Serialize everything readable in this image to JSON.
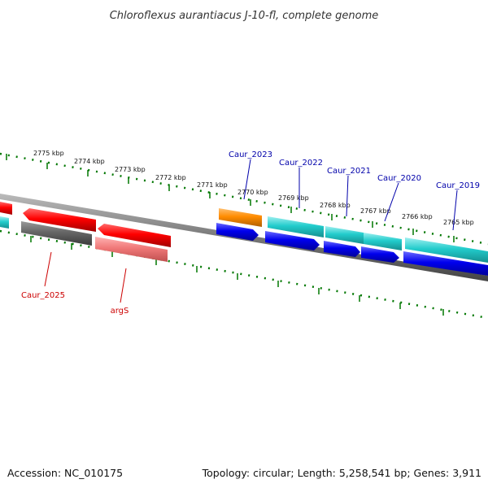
{
  "title": "Chloroflexus aurantiacus J-10-fl, complete genome",
  "footer": {
    "accession": "Accession: NC_010175",
    "summary": "Topology: circular; Length: 5,258,541 bp; Genes: 3,911"
  },
  "ruler": {
    "labels": [
      "2775 kbp",
      "2774 kbp",
      "2773 kbp",
      "2772 kbp",
      "2771 kbp",
      "2770 kbp",
      "2769 kbp",
      "2768 kbp",
      "2767 kbp",
      "2766 kbp",
      "2765 kbp"
    ]
  },
  "gene_labels": [
    {
      "name": "Caur_2023",
      "strand": "forward"
    },
    {
      "name": "Caur_2022",
      "strand": "forward"
    },
    {
      "name": "Caur_2021",
      "strand": "forward"
    },
    {
      "name": "Caur_2020",
      "strand": "forward"
    },
    {
      "name": "Caur_2019",
      "strand": "forward"
    },
    {
      "name": "Caur_2025",
      "strand": "reverse"
    },
    {
      "name": "argS",
      "strand": "reverse"
    }
  ],
  "colors": {
    "label_forward": "#0000aa",
    "label_reverse": "#cc0000",
    "tick": "#007700",
    "backbone": "#777777",
    "cds_red": "#ff0000",
    "cds_pink": "#f07878",
    "cds_gray": "#666666",
    "cds_orange": "#ff8c00",
    "cds_blue": "#0000ee",
    "cds_cyan": "#22cccc"
  }
}
